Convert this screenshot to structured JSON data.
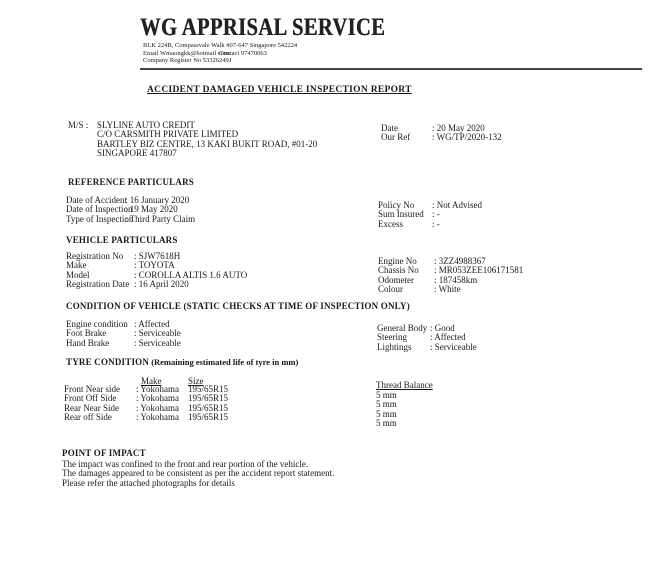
{
  "letterhead": {
    "company": "WG APPRISAL SERVICE",
    "address_line": "BLK 224B, Compassvale Walk #07-647 Singapore 542224",
    "email": "Email Wmaongkk@hotmail com",
    "contact": "Contact 97470063",
    "register": "Company Register No 53326249J"
  },
  "report_title": "ACCIDENT DAMAGED VEHICLE INSPECTION REPORT",
  "addressee": {
    "label": "M/S :",
    "lines": [
      "SLYLINE AUTO CREDIT",
      "C/O CARSMITH PRIVATE LIMITED",
      "BARTLEY BIZ CENTRE, 13 KAKI BUKIT ROAD, #01-20",
      "SINGAPORE 417807"
    ]
  },
  "meta": {
    "labels": [
      "Date",
      "Our Ref"
    ],
    "values": [
      ": 20 May 2020",
      ": WG/TP/2020-132"
    ]
  },
  "reference": {
    "heading": "REFERENCE PARTICULARS",
    "left_labels": [
      "Date of Accident",
      "Date of Inspection",
      "Type of Inspection"
    ],
    "left_values": [
      ": 16 January 2020",
      ": 19 May 2020",
      ": Third Party Claim"
    ],
    "right_labels": [
      "Policy No",
      "Sum Insured",
      "Excess"
    ],
    "right_values": [
      ": Not Advised",
      ": -",
      ": -"
    ]
  },
  "vehicle": {
    "heading": "VEHICLE PARTICULARS",
    "left_labels": [
      "Registration No",
      "Make",
      "Model",
      "Registration Date"
    ],
    "left_values": [
      ": SJW7618H",
      ": TOYOTA",
      ": COROLLA ALTIS 1.6 AUTO",
      ": 16 April 2020"
    ],
    "right_labels": [
      "Engine No",
      "Chassis No",
      "Odometer",
      "Colour"
    ],
    "right_values": [
      ": 3ZZ4988367",
      ": MR053ZEE106171581",
      ": 187458km",
      ": White"
    ]
  },
  "condition": {
    "heading": "CONDITION OF VEHICLE (STATIC CHECKS AT TIME OF INSPECTION ONLY)",
    "left_labels": [
      "Engine condition",
      "Foot Brake",
      "Hand Brake"
    ],
    "left_values": [
      ": Affected",
      ": Serviceable",
      ": Serviceable"
    ],
    "right_labels": [
      "General Body",
      "Steering",
      "Lightings"
    ],
    "right_values": [
      ": Good",
      ": Affected",
      ": Serviceable"
    ]
  },
  "tyre": {
    "heading_bold": "TYRE CONDITION",
    "heading_rest": " (Remaining estimated life of tyre in mm)",
    "col_make": "Make",
    "col_size": "Size",
    "col_thread": "Thread Balance",
    "positions": [
      "Front Near side",
      "Front Off Side",
      "Rear Near Side",
      "Rear off Side"
    ],
    "makes": [
      ": Yokohama",
      ": Yokohama",
      ": Yokohama",
      ": Yokohama"
    ],
    "sizes": [
      "195/65R15",
      "195/65R15",
      "195/65R15",
      "195/65R15"
    ],
    "thread": [
      "5 mm",
      "5 mm",
      "5 mm",
      "5 mm"
    ]
  },
  "impact": {
    "heading": "POINT OF IMPACT",
    "lines": [
      "The impact was confined to the front and rear  portion of the vehicle.",
      "The damages appeared to be consistent as per the accident report statement.",
      "Please refer the attached photographs for details"
    ]
  }
}
